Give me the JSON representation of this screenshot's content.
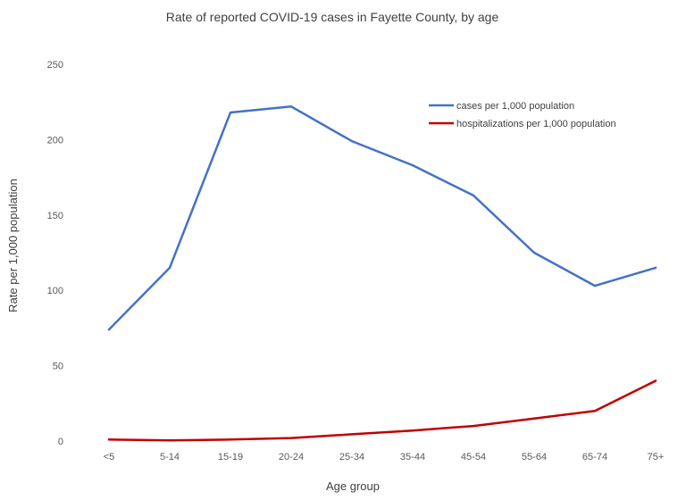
{
  "chart_data": {
    "type": "line",
    "title": "Rate of reported COVID-19 cases in Fayette County, by age",
    "xlabel": "Age group",
    "ylabel": "Rate per 1,000 population",
    "categories": [
      "<5",
      "5-14",
      "15-19",
      "20-24",
      "25-34",
      "35-44",
      "45-54",
      "55-64",
      "65-74",
      "75+"
    ],
    "ylim": [
      0,
      250
    ],
    "yticks": [
      "0",
      "50",
      "100",
      "150",
      "200",
      "250"
    ],
    "grid": false,
    "legend_position": "top-right",
    "series": [
      {
        "name": "cases per 1,000 population",
        "color": "#4472c4",
        "values": [
          74,
          115,
          218,
          222,
          199,
          183,
          163,
          125,
          103,
          115
        ]
      },
      {
        "name": "hospitalizations per 1,000 population",
        "color": "#c00000",
        "values": [
          1,
          0.5,
          1,
          2,
          4.5,
          7,
          10,
          15,
          20,
          40
        ]
      }
    ]
  }
}
